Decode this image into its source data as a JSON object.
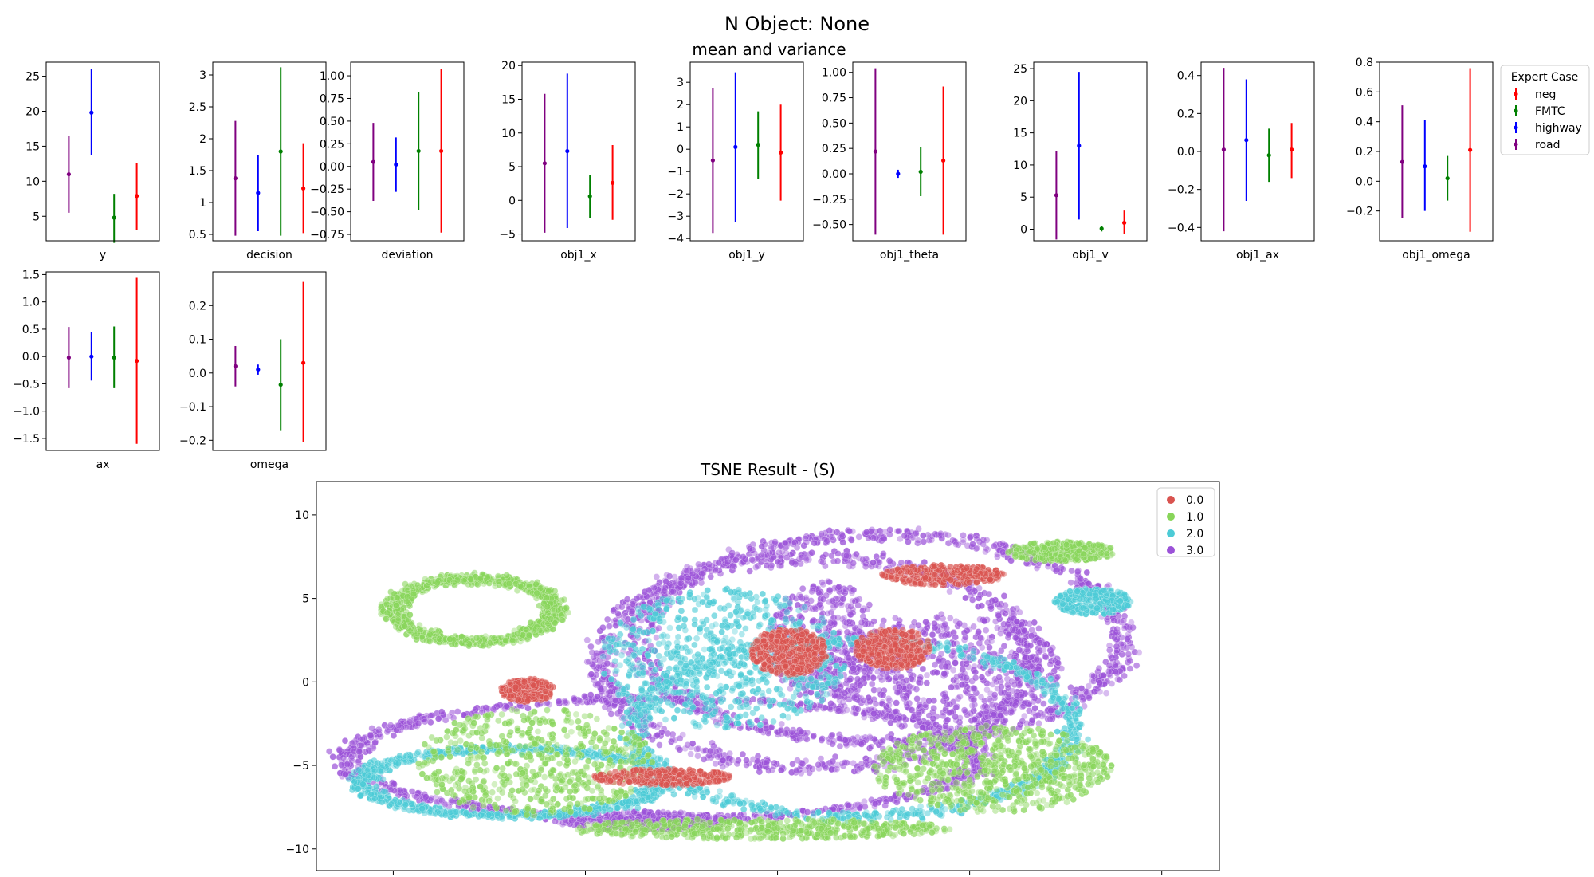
{
  "figure": {
    "title": "N Object: None",
    "subtitle": "mean and variance",
    "colors": {
      "neg": "#ff0000",
      "FMTC": "#008000",
      "highway": "#0000ff",
      "road": "#800080"
    }
  },
  "legend": {
    "title": "Expert Case",
    "entries": [
      {
        "label": "neg",
        "color": "#ff0000"
      },
      {
        "label": "FMTC",
        "color": "#008000"
      },
      {
        "label": "highway",
        "color": "#0000ff"
      },
      {
        "label": "road",
        "color": "#800080"
      }
    ]
  },
  "chart_data": [
    {
      "type": "errorbar",
      "xlabel": "y",
      "ylim": [
        1.5,
        27
      ],
      "yticks": [
        5,
        10,
        15,
        20,
        25
      ],
      "order": [
        "road",
        "highway",
        "FMTC",
        "neg"
      ],
      "series": [
        {
          "name": "road",
          "mean": 11.0,
          "low": 5.5,
          "high": 16.5
        },
        {
          "name": "highway",
          "mean": 19.8,
          "low": 13.7,
          "high": 26.0
        },
        {
          "name": "FMTC",
          "mean": 4.8,
          "low": 1.2,
          "high": 8.2
        },
        {
          "name": "neg",
          "mean": 7.9,
          "low": 3.1,
          "high": 12.6
        }
      ]
    },
    {
      "type": "errorbar",
      "xlabel": "decision",
      "ylim": [
        0.4,
        3.2
      ],
      "yticks": [
        0.5,
        1.0,
        1.5,
        2.0,
        2.5,
        3.0
      ],
      "order": [
        "road",
        "highway",
        "FMTC",
        "neg"
      ],
      "series": [
        {
          "name": "road",
          "mean": 1.38,
          "low": 0.48,
          "high": 2.28
        },
        {
          "name": "highway",
          "mean": 1.15,
          "low": 0.55,
          "high": 1.75
        },
        {
          "name": "FMTC",
          "mean": 1.8,
          "low": 0.48,
          "high": 3.12
        },
        {
          "name": "neg",
          "mean": 1.22,
          "low": 0.52,
          "high": 1.93
        }
      ]
    },
    {
      "type": "errorbar",
      "xlabel": "deviation",
      "ylim": [
        -0.82,
        1.15
      ],
      "yticks": [
        -0.75,
        -0.5,
        -0.25,
        0.0,
        0.25,
        0.5,
        0.75,
        1.0
      ],
      "tick_decimals": 2,
      "order": [
        "road",
        "highway",
        "FMTC",
        "neg"
      ],
      "series": [
        {
          "name": "road",
          "mean": 0.05,
          "low": -0.38,
          "high": 0.48
        },
        {
          "name": "highway",
          "mean": 0.02,
          "low": -0.28,
          "high": 0.32
        },
        {
          "name": "FMTC",
          "mean": 0.17,
          "low": -0.48,
          "high": 0.82
        },
        {
          "name": "neg",
          "mean": 0.17,
          "low": -0.73,
          "high": 1.08
        }
      ]
    },
    {
      "type": "errorbar",
      "xlabel": "obj1_x",
      "ylim": [
        -6,
        20.5
      ],
      "yticks": [
        -5,
        0,
        5,
        10,
        15,
        20
      ],
      "order": [
        "road",
        "highway",
        "FMTC",
        "neg"
      ],
      "series": [
        {
          "name": "road",
          "mean": 5.5,
          "low": -4.8,
          "high": 15.8
        },
        {
          "name": "highway",
          "mean": 7.3,
          "low": -4.1,
          "high": 18.8
        },
        {
          "name": "FMTC",
          "mean": 0.6,
          "low": -2.6,
          "high": 3.8
        },
        {
          "name": "neg",
          "mean": 2.6,
          "low": -2.9,
          "high": 8.2
        }
      ]
    },
    {
      "type": "errorbar",
      "xlabel": "obj1_y",
      "ylim": [
        -4.1,
        3.9
      ],
      "yticks": [
        -4,
        -3,
        -2,
        -1,
        0,
        1,
        2,
        3
      ],
      "order": [
        "road",
        "highway",
        "FMTC",
        "neg"
      ],
      "series": [
        {
          "name": "road",
          "mean": -0.5,
          "low": -3.75,
          "high": 2.75
        },
        {
          "name": "highway",
          "mean": 0.1,
          "low": -3.25,
          "high": 3.45
        },
        {
          "name": "FMTC",
          "mean": 0.2,
          "low": -1.35,
          "high": 1.7
        },
        {
          "name": "neg",
          "mean": -0.15,
          "low": -2.3,
          "high": 2.0
        }
      ]
    },
    {
      "type": "errorbar",
      "xlabel": "obj1_theta",
      "ylim": [
        -0.66,
        1.1
      ],
      "yticks": [
        -0.5,
        -0.25,
        0.0,
        0.25,
        0.5,
        0.75,
        1.0
      ],
      "tick_decimals": 2,
      "order": [
        "road",
        "highway",
        "FMTC",
        "neg"
      ],
      "series": [
        {
          "name": "road",
          "mean": 0.22,
          "low": -0.6,
          "high": 1.04
        },
        {
          "name": "highway",
          "mean": 0.0,
          "low": -0.04,
          "high": 0.04
        },
        {
          "name": "FMTC",
          "mean": 0.02,
          "low": -0.22,
          "high": 0.26
        },
        {
          "name": "neg",
          "mean": 0.13,
          "low": -0.6,
          "high": 0.86
        }
      ]
    },
    {
      "type": "errorbar",
      "xlabel": "obj1_v",
      "ylim": [
        -1.8,
        26
      ],
      "yticks": [
        0,
        5,
        10,
        15,
        20,
        25
      ],
      "order": [
        "road",
        "highway",
        "FMTC",
        "neg"
      ],
      "series": [
        {
          "name": "road",
          "mean": 5.3,
          "low": -1.6,
          "high": 12.2
        },
        {
          "name": "highway",
          "mean": 13.0,
          "low": 1.5,
          "high": 24.5
        },
        {
          "name": "FMTC",
          "mean": 0.1,
          "low": -0.35,
          "high": 0.55
        },
        {
          "name": "neg",
          "mean": 1.0,
          "low": -0.8,
          "high": 2.9
        }
      ]
    },
    {
      "type": "errorbar",
      "xlabel": "obj1_ax",
      "ylim": [
        -0.47,
        0.47
      ],
      "yticks": [
        -0.4,
        -0.2,
        0.0,
        0.2,
        0.4
      ],
      "tick_decimals": 1,
      "order": [
        "road",
        "highway",
        "FMTC",
        "neg"
      ],
      "series": [
        {
          "name": "road",
          "mean": 0.01,
          "low": -0.42,
          "high": 0.44
        },
        {
          "name": "highway",
          "mean": 0.06,
          "low": -0.26,
          "high": 0.38
        },
        {
          "name": "FMTC",
          "mean": -0.02,
          "low": -0.16,
          "high": 0.12
        },
        {
          "name": "neg",
          "mean": 0.01,
          "low": -0.14,
          "high": 0.15
        }
      ]
    },
    {
      "type": "errorbar",
      "xlabel": "obj1_omega",
      "ylim": [
        -0.4,
        0.8
      ],
      "yticks": [
        -0.2,
        0.0,
        0.2,
        0.4,
        0.6,
        0.8
      ],
      "tick_decimals": 1,
      "order": [
        "road",
        "highway",
        "FMTC",
        "neg"
      ],
      "series": [
        {
          "name": "road",
          "mean": 0.13,
          "low": -0.25,
          "high": 0.51
        },
        {
          "name": "highway",
          "mean": 0.1,
          "low": -0.2,
          "high": 0.41
        },
        {
          "name": "FMTC",
          "mean": 0.02,
          "low": -0.13,
          "high": 0.17
        },
        {
          "name": "neg",
          "mean": 0.21,
          "low": -0.34,
          "high": 0.76
        }
      ]
    },
    {
      "type": "errorbar",
      "xlabel": "ax",
      "ylim": [
        -1.72,
        1.55
      ],
      "yticks": [
        -1.5,
        -1.0,
        -0.5,
        0.0,
        0.5,
        1.0,
        1.5
      ],
      "tick_decimals": 1,
      "order": [
        "road",
        "highway",
        "FMTC",
        "neg"
      ],
      "series": [
        {
          "name": "road",
          "mean": -0.02,
          "low": -0.58,
          "high": 0.54
        },
        {
          "name": "highway",
          "mean": 0.0,
          "low": -0.44,
          "high": 0.45
        },
        {
          "name": "FMTC",
          "mean": -0.02,
          "low": -0.58,
          "high": 0.55
        },
        {
          "name": "neg",
          "mean": -0.08,
          "low": -1.6,
          "high": 1.44
        }
      ]
    },
    {
      "type": "errorbar",
      "xlabel": "omega",
      "ylim": [
        -0.23,
        0.3
      ],
      "yticks": [
        -0.2,
        -0.1,
        0.0,
        0.1,
        0.2
      ],
      "tick_decimals": 1,
      "order": [
        "road",
        "highway",
        "FMTC",
        "neg"
      ],
      "series": [
        {
          "name": "road",
          "mean": 0.02,
          "low": -0.04,
          "high": 0.08
        },
        {
          "name": "highway",
          "mean": 0.01,
          "low": -0.005,
          "high": 0.025
        },
        {
          "name": "FMTC",
          "mean": -0.035,
          "low": -0.17,
          "high": 0.1
        },
        {
          "name": "neg",
          "mean": 0.03,
          "low": -0.205,
          "high": 0.27
        }
      ]
    },
    {
      "type": "scatter",
      "title": "TSNE Result - (S)",
      "xlim": [
        -12,
        11.5
      ],
      "ylim": [
        -11.3,
        12
      ],
      "xticks": [
        -10,
        -5,
        0,
        5,
        10
      ],
      "yticks": [
        -10,
        -5,
        0,
        5,
        10
      ],
      "legend": {
        "labels": [
          "0.0",
          "1.0",
          "2.0",
          "3.0"
        ],
        "colors": [
          "#d9534f",
          "#88d55a",
          "#4ccbd6",
          "#9b52d8"
        ]
      },
      "clusters": [
        {
          "label": "3.0",
          "shape": "loop",
          "cx": -3.0,
          "cy": -4.6,
          "rx": 8.2,
          "ry": 3.6,
          "width": 0.35
        },
        {
          "label": "3.0",
          "shape": "loop",
          "cx": 1.0,
          "cy": 1.2,
          "rx": 5.6,
          "ry": 6.3,
          "width": 0.35
        },
        {
          "label": "3.0",
          "shape": "loop",
          "cx": 2.7,
          "cy": 2.6,
          "rx": 6.3,
          "ry": 6.2,
          "width": 0.3
        },
        {
          "label": "3.0",
          "shape": "blob",
          "cx": 4.2,
          "cy": 0.8,
          "rx": 3.2,
          "ry": 3.3,
          "density": 1.0
        },
        {
          "label": "3.0",
          "shape": "blob",
          "cx": 1.2,
          "cy": 2.5,
          "rx": 1.5,
          "ry": 3.6,
          "density": 0.6
        },
        {
          "label": "3.0",
          "shape": "blob",
          "cx": -3.5,
          "cy": -8.3,
          "rx": 2.3,
          "ry": 0.55,
          "density": 0.5
        },
        {
          "label": "2.0",
          "shape": "blob",
          "cx": -1.4,
          "cy": 1.4,
          "rx": 3.2,
          "ry": 4.2,
          "density": 1.0
        },
        {
          "label": "2.0",
          "shape": "loop",
          "cx": -6.9,
          "cy": -6.0,
          "rx": 3.9,
          "ry": 2.0,
          "width": 0.3
        },
        {
          "label": "2.0",
          "shape": "loop",
          "cx": 2.0,
          "cy": -2.8,
          "rx": 5.7,
          "ry": 5.3,
          "width": 0.25
        },
        {
          "label": "2.0",
          "shape": "blob",
          "cx": 8.2,
          "cy": 4.8,
          "rx": 1.0,
          "ry": 0.8,
          "density": 0.4
        },
        {
          "label": "1.0",
          "shape": "blob",
          "cx": 5.6,
          "cy": -5.2,
          "rx": 3.1,
          "ry": 2.6,
          "density": 1.0
        },
        {
          "label": "1.0",
          "shape": "loop",
          "cx": -7.9,
          "cy": 4.3,
          "rx": 2.1,
          "ry": 1.9,
          "width": 0.25
        },
        {
          "label": "1.0",
          "shape": "blob",
          "cx": -6.3,
          "cy": -4.8,
          "rx": 3.1,
          "ry": 3.2,
          "density": 0.8
        },
        {
          "label": "1.0",
          "shape": "blob",
          "cx": 7.4,
          "cy": 7.8,
          "rx": 1.4,
          "ry": 0.6,
          "density": 0.4
        },
        {
          "label": "1.0",
          "shape": "blob",
          "cx": -0.5,
          "cy": -8.8,
          "rx": 5.0,
          "ry": 0.6,
          "density": 0.7
        },
        {
          "label": "0.0",
          "shape": "blob",
          "cx": 0.3,
          "cy": 1.8,
          "rx": 1.0,
          "ry": 1.4,
          "density": 0.6
        },
        {
          "label": "0.0",
          "shape": "blob",
          "cx": 3.0,
          "cy": 2.0,
          "rx": 1.0,
          "ry": 1.2,
          "density": 0.5
        },
        {
          "label": "0.0",
          "shape": "blob",
          "cx": 4.3,
          "cy": 6.4,
          "rx": 1.6,
          "ry": 0.6,
          "density": 0.4
        },
        {
          "label": "0.0",
          "shape": "blob",
          "cx": -3.0,
          "cy": -5.7,
          "rx": 1.8,
          "ry": 0.5,
          "density": 0.4
        },
        {
          "label": "0.0",
          "shape": "blob",
          "cx": -6.5,
          "cy": -0.5,
          "rx": 0.7,
          "ry": 0.7,
          "density": 0.4
        }
      ]
    }
  ]
}
